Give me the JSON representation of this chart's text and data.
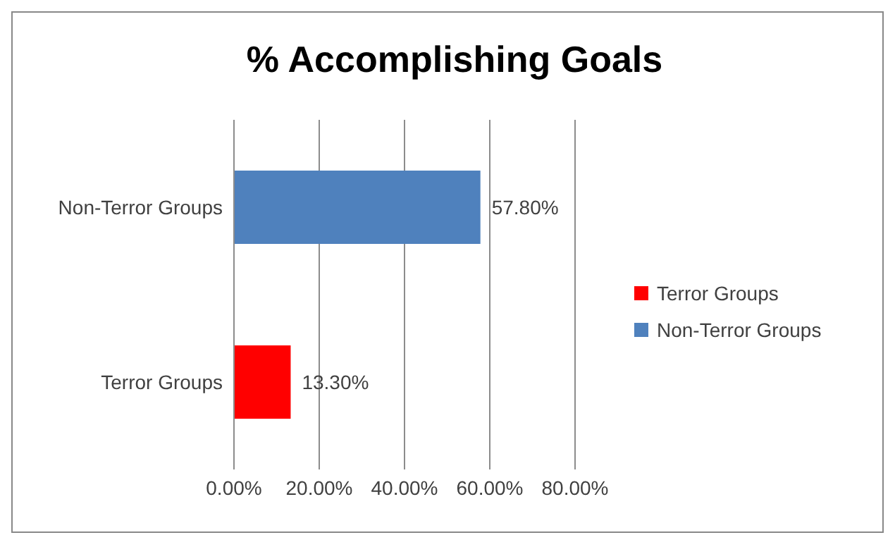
{
  "chart_data": {
    "type": "bar",
    "orientation": "horizontal",
    "title": "% Accomplishing Goals",
    "categories": [
      "Non-Terror Groups",
      "Terror Groups"
    ],
    "series": [
      {
        "name": "Terror Groups",
        "color": "#ff0000",
        "values": [
          null,
          13.3
        ],
        "value_labels": [
          null,
          "13.30%"
        ]
      },
      {
        "name": "Non-Terror Groups",
        "color": "#4f81bd",
        "values": [
          57.8,
          null
        ],
        "value_labels": [
          "57.80%",
          null
        ]
      }
    ],
    "xlim": [
      0,
      80
    ],
    "xticks": [
      {
        "value": 0,
        "label": "0.00%"
      },
      {
        "value": 20,
        "label": "20.00%"
      },
      {
        "value": 40,
        "label": "40.00%"
      },
      {
        "value": 60,
        "label": "60.00%"
      },
      {
        "value": 80,
        "label": "80.00%"
      }
    ],
    "grid": "x",
    "legend": "right"
  }
}
